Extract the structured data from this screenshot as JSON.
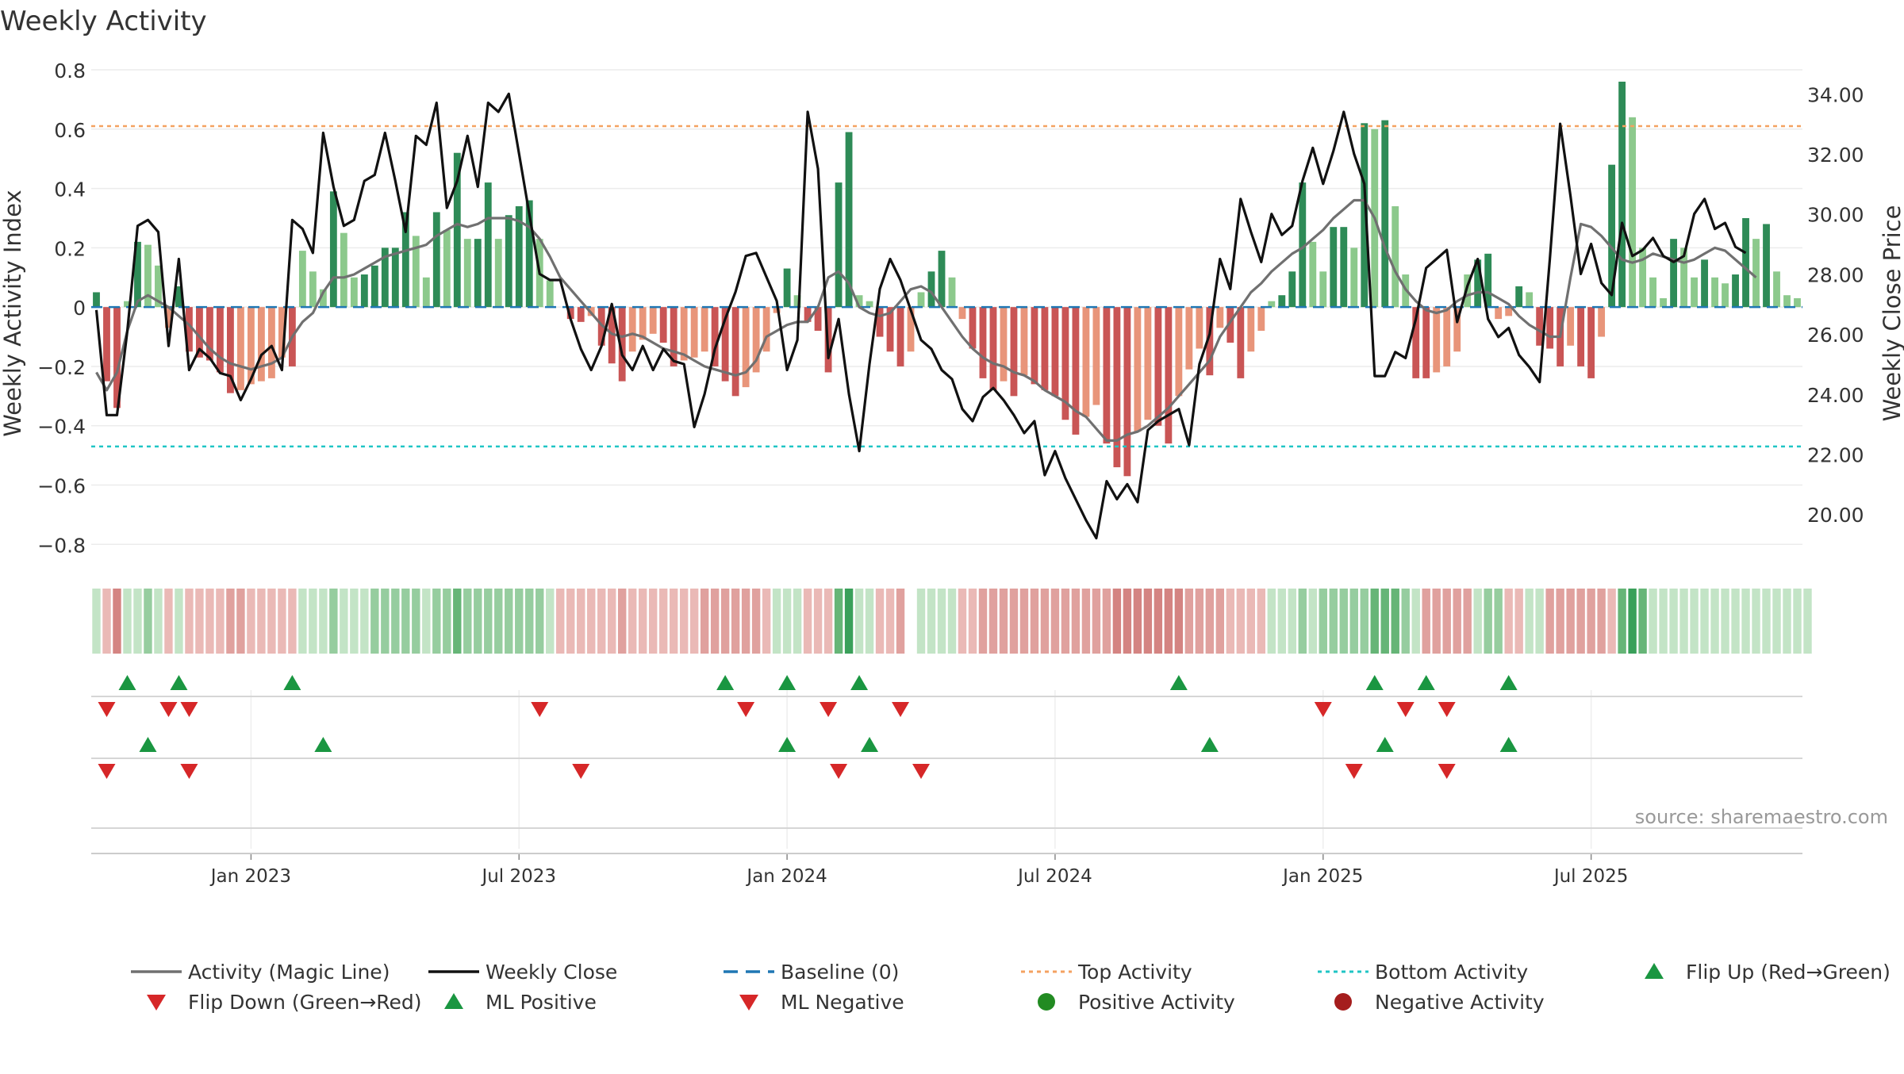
{
  "title": "Weekly Activity",
  "source_label": "source: sharemaestro.com",
  "colors": {
    "green_dark": "#2e8b57",
    "green_light": "#8cc98c",
    "red_dark": "#c95555",
    "red_light": "#e8957a",
    "close_line": "#111111",
    "magic_line": "#707070",
    "baseline": "#1f77b4",
    "top_line": "#f4a261",
    "bottom_line": "#20c5c5",
    "marker_up": "#1a9641",
    "marker_down": "#d62728",
    "dot_pos": "#228b22",
    "dot_neg": "#a51d1d"
  },
  "chart_data": {
    "type": "bar",
    "title": "Weekly Activity",
    "xlabel": "",
    "ylabel": "Weekly Activity Index",
    "y2label": "Weekly Close Price",
    "ylim": [
      -0.85,
      0.8
    ],
    "y2lim": [
      18.5,
      34.8
    ],
    "yticks": [
      0.8,
      0.6,
      0.4,
      0.2,
      0,
      -0.2,
      -0.4,
      -0.6,
      -0.8
    ],
    "ytick_labels": [
      "0.8",
      "0.6",
      "0.4",
      "0.2",
      "0",
      "−0.2",
      "−0.4",
      "−0.6",
      "−0.8"
    ],
    "y2ticks": [
      34,
      32,
      30,
      28,
      26,
      24,
      22,
      20
    ],
    "y2tick_labels": [
      "34.00",
      "32.00",
      "30.00",
      "28.00",
      "26.00",
      "24.00",
      "22.00",
      "20.00"
    ],
    "xticks": [
      {
        "week": 15,
        "label": "Jan 2023"
      },
      {
        "week": 41,
        "label": "Jul 2023"
      },
      {
        "week": 67,
        "label": "Jan 2024"
      },
      {
        "week": 93,
        "label": "Jul 2024"
      },
      {
        "week": 119,
        "label": "Jan 2025"
      },
      {
        "week": 145,
        "label": "Jul 2025"
      }
    ],
    "top_activity": 0.61,
    "bottom_activity": -0.47,
    "activity": [
      0.05,
      -0.25,
      -0.34,
      0.02,
      0.22,
      0.21,
      0.14,
      -0.07,
      0.07,
      -0.15,
      -0.17,
      -0.18,
      -0.22,
      -0.29,
      -0.28,
      -0.26,
      -0.25,
      -0.24,
      -0.17,
      -0.2,
      0.19,
      0.12,
      0.06,
      0.39,
      0.25,
      0.1,
      0.11,
      0.14,
      0.2,
      0.2,
      0.32,
      0.24,
      0.1,
      0.32,
      0.26,
      0.52,
      0.23,
      0.23,
      0.42,
      0.23,
      0.31,
      0.34,
      0.36,
      0.23,
      0.09,
      0.0,
      -0.04,
      -0.05,
      -0.03,
      -0.13,
      -0.19,
      -0.25,
      -0.15,
      -0.11,
      -0.09,
      -0.12,
      -0.2,
      -0.18,
      -0.17,
      -0.15,
      -0.2,
      -0.25,
      -0.3,
      -0.27,
      -0.22,
      -0.15,
      -0.02,
      0.13,
      0.04,
      -0.05,
      -0.08,
      -0.22,
      0.42,
      0.59,
      0.04,
      0.02,
      -0.1,
      -0.15,
      -0.2,
      -0.15,
      0.05,
      0.12,
      0.19,
      0.1,
      -0.04,
      -0.14,
      -0.24,
      -0.28,
      -0.25,
      -0.3,
      -0.23,
      -0.26,
      -0.28,
      -0.3,
      -0.38,
      -0.43,
      -0.37,
      -0.33,
      -0.46,
      -0.54,
      -0.57,
      -0.42,
      -0.38,
      -0.4,
      -0.46,
      -0.3,
      -0.21,
      -0.14,
      -0.23,
      -0.07,
      -0.12,
      -0.24,
      -0.15,
      -0.08,
      0.02,
      0.04,
      0.12,
      0.42,
      0.22,
      0.12,
      0.27,
      0.27,
      0.2,
      0.62,
      0.6,
      0.63,
      0.34,
      0.11,
      -0.24,
      -0.24,
      -0.22,
      -0.2,
      -0.15,
      0.11,
      0.16,
      0.18,
      -0.04,
      -0.03,
      0.07,
      0.05,
      -0.13,
      -0.14,
      -0.2,
      -0.13,
      -0.2,
      -0.24,
      -0.1,
      0.48,
      0.76,
      0.64,
      0.2,
      0.1,
      0.03,
      0.23,
      0.2,
      0.1,
      0.16,
      0.1,
      0.08,
      0.11,
      0.3,
      0.23,
      0.28,
      0.12,
      0.04,
      0.03
    ],
    "magic_line": [
      -0.22,
      -0.28,
      -0.22,
      -0.08,
      0.02,
      0.04,
      0.02,
      0.0,
      -0.03,
      -0.06,
      -0.1,
      -0.14,
      -0.17,
      -0.19,
      -0.2,
      -0.21,
      -0.2,
      -0.19,
      -0.17,
      -0.1,
      -0.05,
      -0.02,
      0.05,
      0.1,
      0.1,
      0.11,
      0.13,
      0.15,
      0.17,
      0.18,
      0.19,
      0.2,
      0.21,
      0.24,
      0.26,
      0.28,
      0.27,
      0.28,
      0.3,
      0.3,
      0.3,
      0.29,
      0.27,
      0.23,
      0.17,
      0.1,
      0.06,
      0.02,
      -0.02,
      -0.06,
      -0.09,
      -0.1,
      -0.09,
      -0.1,
      -0.12,
      -0.14,
      -0.15,
      -0.16,
      -0.18,
      -0.2,
      -0.21,
      -0.22,
      -0.23,
      -0.22,
      -0.18,
      -0.1,
      -0.08,
      -0.06,
      -0.05,
      -0.05,
      0.0,
      0.1,
      0.12,
      0.08,
      0.0,
      -0.02,
      -0.03,
      -0.02,
      0.02,
      0.06,
      0.07,
      0.05,
      0.0,
      -0.05,
      -0.1,
      -0.14,
      -0.17,
      -0.19,
      -0.2,
      -0.22,
      -0.23,
      -0.25,
      -0.28,
      -0.3,
      -0.32,
      -0.35,
      -0.37,
      -0.41,
      -0.45,
      -0.45,
      -0.43,
      -0.42,
      -0.4,
      -0.37,
      -0.34,
      -0.3,
      -0.26,
      -0.22,
      -0.18,
      -0.1,
      -0.05,
      0.0,
      0.05,
      0.08,
      0.12,
      0.15,
      0.18,
      0.2,
      0.23,
      0.26,
      0.3,
      0.33,
      0.36,
      0.36,
      0.3,
      0.2,
      0.12,
      0.06,
      0.02,
      -0.01,
      -0.02,
      -0.01,
      0.02,
      0.04,
      0.05,
      0.05,
      0.03,
      0.01,
      -0.03,
      -0.06,
      -0.08,
      -0.1,
      -0.1,
      0.1,
      0.28,
      0.27,
      0.24,
      0.2,
      0.16,
      0.15,
      0.16,
      0.18,
      0.17,
      0.16,
      0.15,
      0.16,
      0.18,
      0.2,
      0.19,
      0.16,
      0.13,
      0.1
    ],
    "weekly_close": [
      26.8,
      23.3,
      23.3,
      26.1,
      29.6,
      29.8,
      29.4,
      25.6,
      28.5,
      24.8,
      25.5,
      25.2,
      24.7,
      24.6,
      23.8,
      24.5,
      25.3,
      25.6,
      24.8,
      29.8,
      29.5,
      28.7,
      32.7,
      30.9,
      29.6,
      29.8,
      31.1,
      31.3,
      32.7,
      31.1,
      29.4,
      32.6,
      32.3,
      33.7,
      30.2,
      31.1,
      32.6,
      30.9,
      33.7,
      33.4,
      34.0,
      32.0,
      30.0,
      28.0,
      27.8,
      27.8,
      26.5,
      25.5,
      24.8,
      25.6,
      27.0,
      25.3,
      24.8,
      25.6,
      24.8,
      25.5,
      25.1,
      25.0,
      22.9,
      24.0,
      25.5,
      26.5,
      27.4,
      28.6,
      28.7,
      27.9,
      27.1,
      24.8,
      25.8,
      33.4,
      31.5,
      25.2,
      26.5,
      24.0,
      22.1,
      25.0,
      27.5,
      28.5,
      27.8,
      26.8,
      25.8,
      25.5,
      24.8,
      24.5,
      23.5,
      23.1,
      23.9,
      24.2,
      23.8,
      23.3,
      22.7,
      23.1,
      21.3,
      22.1,
      21.2,
      20.5,
      19.8,
      19.2,
      21.1,
      20.5,
      21.0,
      20.4,
      22.8,
      23.1,
      23.3,
      23.5,
      22.3,
      25.0,
      26.0,
      28.5,
      27.5,
      30.5,
      29.4,
      28.4,
      30.0,
      29.3,
      29.6,
      31.1,
      32.2,
      31.0,
      32.1,
      33.4,
      32.0,
      31.0,
      24.6,
      24.6,
      25.4,
      25.2,
      26.5,
      28.2,
      28.5,
      28.8,
      26.4,
      27.6,
      28.5,
      26.5,
      25.9,
      26.2,
      25.3,
      24.9,
      24.4,
      28.5,
      33.0,
      30.6,
      28.0,
      29.0,
      27.7,
      27.3,
      29.7,
      28.6,
      28.8,
      29.2,
      28.6,
      28.4,
      28.6,
      30.0,
      30.5,
      29.5,
      29.7,
      28.9,
      28.7
    ],
    "band_levels": [
      1,
      -1,
      -3,
      1,
      1,
      2,
      1,
      -1,
      1,
      -1,
      -1,
      -1,
      -1,
      -2,
      -2,
      -1,
      -1,
      -1,
      -1,
      -1,
      1,
      1,
      1,
      2,
      1,
      1,
      1,
      2,
      2,
      2,
      2,
      2,
      1,
      2,
      2,
      3,
      2,
      2,
      2,
      2,
      2,
      2,
      2,
      2,
      1,
      -1,
      -1,
      -1,
      -1,
      -1,
      -1,
      -2,
      -1,
      -1,
      -1,
      -1,
      -1,
      -1,
      -1,
      -2,
      -2,
      -2,
      -2,
      -2,
      -2,
      -1,
      1,
      1,
      1,
      -1,
      -1,
      -1,
      3,
      4,
      1,
      1,
      -1,
      -1,
      -2,
      0,
      1,
      1,
      1,
      1,
      -1,
      -1,
      -2,
      -2,
      -2,
      -2,
      -2,
      -2,
      -2,
      -2,
      -2,
      -2,
      -2,
      -2,
      -2,
      -3,
      -3,
      -3,
      -3,
      -3,
      -3,
      -3,
      -2,
      -2,
      -2,
      -2,
      -1,
      -1,
      -1,
      -1,
      1,
      1,
      1,
      2,
      1,
      2,
      2,
      2,
      2,
      2,
      3,
      3,
      3,
      2,
      1,
      -2,
      -2,
      -2,
      -2,
      -2,
      1,
      2,
      2,
      -1,
      -1,
      1,
      1,
      -2,
      -2,
      -2,
      -2,
      -2,
      -2,
      -1,
      3,
      4,
      3,
      1,
      1,
      1,
      1,
      1,
      1,
      1,
      1,
      1,
      1,
      1,
      1,
      1,
      1,
      1,
      1
    ],
    "flip_up_weeks": [
      3,
      8,
      19,
      61,
      67,
      74,
      105,
      124,
      129,
      137
    ],
    "flip_down_weeks": [
      1,
      7,
      9,
      43,
      63,
      71,
      78,
      119,
      127,
      131
    ],
    "ml_positive_weeks": [
      5,
      22,
      67,
      75,
      108,
      125,
      137
    ],
    "ml_negative_weeks": [
      1,
      9,
      47,
      72,
      80,
      122,
      131
    ]
  },
  "legend": [
    {
      "label": "Activity (Magic Line)",
      "kind": "line",
      "color": "#707070"
    },
    {
      "label": "Weekly Close",
      "kind": "line",
      "color": "#111111"
    },
    {
      "label": "Baseline (0)",
      "kind": "dash",
      "color": "#1f77b4"
    },
    {
      "label": "Top Activity",
      "kind": "dot-line",
      "color": "#f4a261"
    },
    {
      "label": "Bottom Activity",
      "kind": "dot-line",
      "color": "#20c5c5"
    },
    {
      "label": "Flip Up (Red→Green)",
      "kind": "tri-up",
      "color": "#1a9641"
    },
    {
      "label": "Flip Down (Green→Red)",
      "kind": "tri-down",
      "color": "#d62728"
    },
    {
      "label": "ML Positive",
      "kind": "tri-up",
      "color": "#1a9641"
    },
    {
      "label": "ML Negative",
      "kind": "tri-down",
      "color": "#d62728"
    },
    {
      "label": "Positive Activity",
      "kind": "circle",
      "color": "#228b22"
    },
    {
      "label": "Negative Activity",
      "kind": "circle",
      "color": "#a51d1d"
    }
  ]
}
